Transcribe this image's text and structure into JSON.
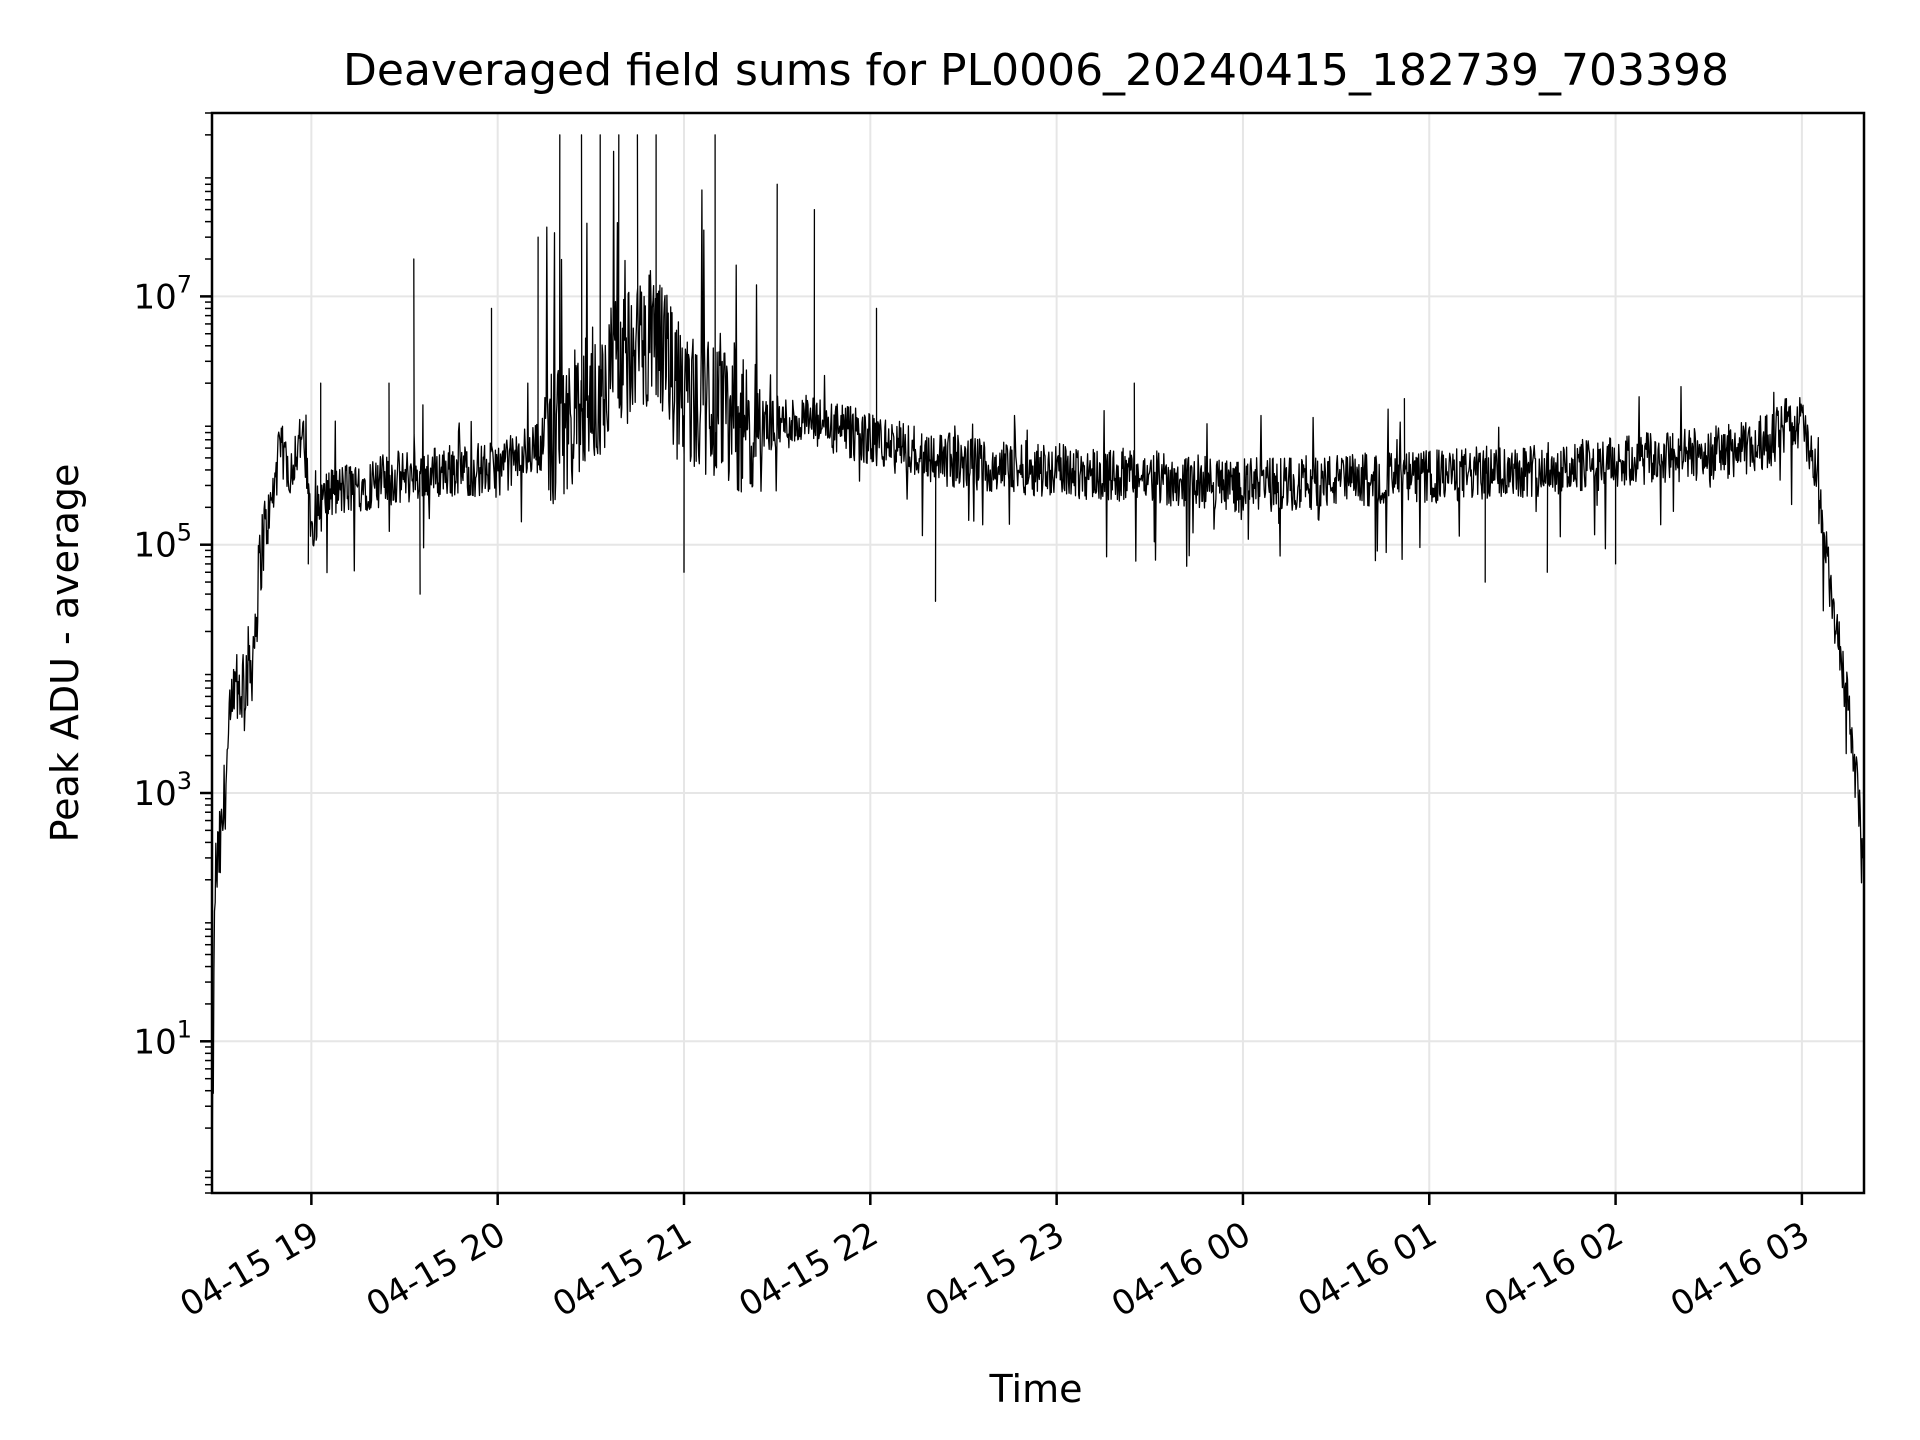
{
  "chart_data": {
    "type": "line",
    "title": "Deaveraged field sums for PL0006_20240415_182739_703398",
    "xlabel": "Time",
    "ylabel": "Peak ADU - average",
    "x_axis": {
      "kind": "datetime",
      "xlim": [
        "2024-04-15 18:28",
        "2024-04-16 03:20"
      ],
      "tick_values": [
        "2024-04-15 19:00",
        "2024-04-15 20:00",
        "2024-04-15 21:00",
        "2024-04-15 22:00",
        "2024-04-15 23:00",
        "2024-04-16 00:00",
        "2024-04-16 01:00",
        "2024-04-16 02:00",
        "2024-04-16 03:00"
      ],
      "tick_labels": [
        "04-15 19",
        "04-15 20",
        "04-15 21",
        "04-15 22",
        "04-15 23",
        "04-16 00",
        "04-16 01",
        "04-16 02",
        "04-16 03"
      ],
      "tick_rotation": 30
    },
    "y_axis": {
      "scale": "log",
      "ylim": [
        0.6,
        300000000
      ],
      "ticks": [
        {
          "value": 10,
          "base": "10",
          "exp": "1"
        },
        {
          "value": 1000,
          "base": "10",
          "exp": "3"
        },
        {
          "value": 100000,
          "base": "10",
          "exp": "5"
        },
        {
          "value": 10000000,
          "base": "10",
          "exp": "7"
        }
      ]
    },
    "grid": true,
    "line_color": "#000000",
    "grid_color": "#e6e6e6",
    "series": [
      {
        "points": [
          [
            "2024-04-15 18:28",
            0.6
          ],
          [
            "2024-04-15 18:29",
            200
          ],
          [
            "2024-04-15 18:31",
            400
          ],
          [
            "2024-04-15 18:33",
            2000
          ],
          [
            "2024-04-15 18:35",
            5000
          ],
          [
            "2024-04-15 18:38",
            8000
          ],
          [
            "2024-04-15 18:41",
            12000
          ],
          [
            "2024-04-15 18:44",
            100000
          ],
          [
            "2024-04-15 18:47",
            200000
          ],
          [
            "2024-04-15 18:50",
            600000
          ],
          [
            "2024-04-15 18:53",
            400000
          ],
          [
            "2024-04-15 18:57",
            800000
          ],
          [
            "2024-04-15 19:00",
            150000
          ],
          [
            "2024-04-15 19:05",
            250000
          ],
          [
            "2024-04-15 19:15",
            300000
          ],
          [
            "2024-04-15 19:30",
            350000
          ],
          [
            "2024-04-15 19:45",
            400000
          ],
          [
            "2024-04-15 20:00",
            400000
          ],
          [
            "2024-04-15 20:20",
            800000
          ],
          [
            "2024-04-15 20:40",
            3000000
          ],
          [
            "2024-04-15 20:50",
            5000000
          ],
          [
            "2024-04-15 21:00",
            1500000
          ],
          [
            "2024-04-15 21:20",
            900000
          ],
          [
            "2024-04-15 21:40",
            1000000
          ],
          [
            "2024-04-15 22:00",
            700000
          ],
          [
            "2024-04-15 22:30",
            450000
          ],
          [
            "2024-04-15 23:00",
            400000
          ],
          [
            "2024-04-16 00:00",
            300000
          ],
          [
            "2024-04-16 01:00",
            350000
          ],
          [
            "2024-04-16 02:00",
            450000
          ],
          [
            "2024-04-16 02:45",
            600000
          ],
          [
            "2024-04-16 03:00",
            1000000
          ],
          [
            "2024-04-16 03:05",
            300000
          ],
          [
            "2024-04-16 03:10",
            30000
          ],
          [
            "2024-04-16 03:15",
            5000
          ],
          [
            "2024-04-16 03:20",
            300
          ]
        ],
        "spikes": [
          [
            "2024-04-15 19:03",
            2000000
          ],
          [
            "2024-04-15 19:25",
            2000000
          ],
          [
            "2024-04-15 19:33",
            20000000
          ],
          [
            "2024-04-15 19:58",
            8000000
          ],
          [
            "2024-04-15 20:13",
            30000000
          ],
          [
            "2024-04-15 20:20",
            200000000
          ],
          [
            "2024-04-15 20:27",
            200000000
          ],
          [
            "2024-04-15 20:33",
            200000000
          ],
          [
            "2024-04-15 20:39",
            200000000
          ],
          [
            "2024-04-15 20:45",
            200000000
          ],
          [
            "2024-04-15 20:51",
            200000000
          ],
          [
            "2024-04-15 21:10",
            200000000
          ],
          [
            "2024-04-15 21:30",
            80000000
          ],
          [
            "2024-04-15 21:42",
            50000000
          ],
          [
            "2024-04-15 22:02",
            8000000
          ],
          [
            "2024-04-15 23:25",
            2000000
          ],
          [
            "2024-04-16 00:52",
            1500000
          ],
          [
            "2024-04-16 02:55",
            1500000
          ]
        ],
        "dips": [
          [
            "2024-04-15 18:59",
            70000
          ],
          [
            "2024-04-15 19:35",
            40000
          ],
          [
            "2024-04-15 21:00",
            60000
          ],
          [
            "2024-04-15 22:21",
            35000
          ],
          [
            "2024-04-16 01:18",
            50000
          ],
          [
            "2024-04-16 01:38",
            60000
          ],
          [
            "2024-04-16 02:00",
            70000
          ]
        ]
      }
    ]
  }
}
